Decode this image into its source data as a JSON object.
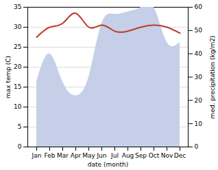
{
  "chart_data": {
    "type": "line",
    "xlabel": "date (month)",
    "ylabel": "max temp (C)",
    "y2label": "med. precipitation (kg/m2)",
    "categories": [
      "Jan",
      "Feb",
      "Mar",
      "Apr",
      "May",
      "Jun",
      "Jul",
      "Aug",
      "Sep",
      "Oct",
      "Nov",
      "Dec"
    ],
    "series": [
      {
        "type": "line",
        "color": "#c0392b",
        "values": [
          27.5,
          30,
          31,
          33.5,
          30,
          30.5,
          29,
          29,
          30,
          30.5,
          30,
          28.5
        ]
      },
      {
        "type": "area",
        "color": "#c5cfe8",
        "axis": "y2",
        "values": [
          28,
          40,
          28,
          22,
          30,
          53,
          57,
          58,
          60,
          60,
          45,
          45
        ]
      }
    ],
    "ylim": [
      0,
      35
    ],
    "yticks": [
      0,
      5,
      10,
      15,
      20,
      25,
      30,
      35
    ],
    "y2lim": [
      0,
      60
    ],
    "y2ticks": [
      0,
      10,
      20,
      30,
      40,
      50,
      60
    ],
    "grid": true
  }
}
